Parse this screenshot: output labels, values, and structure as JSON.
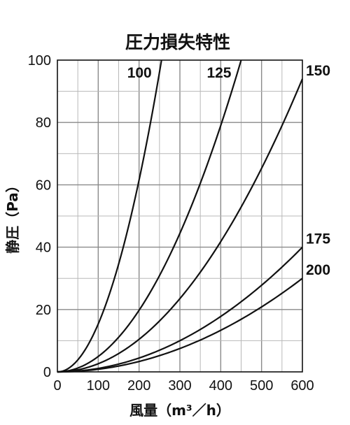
{
  "chart_data": {
    "type": "line",
    "title": "圧力損失特性",
    "xlabel": "風量（m³／h）",
    "ylabel": "静圧（Pa）",
    "xlim": [
      0,
      600
    ],
    "ylim": [
      0,
      100
    ],
    "x_ticks": [
      "0",
      "100",
      "200",
      "300",
      "400",
      "500",
      "600"
    ],
    "y_ticks": [
      "0",
      "20",
      "40",
      "60",
      "80",
      "100"
    ],
    "grid": true,
    "legend": "inline-labels",
    "series": [
      {
        "name": "100",
        "x": [
          0,
          50,
          100,
          150,
          200,
          250,
          255
        ],
        "y": [
          0,
          3.5,
          14.2,
          31.9,
          56.7,
          88.6,
          100
        ]
      },
      {
        "name": "125",
        "x": [
          0,
          100,
          200,
          300,
          400,
          450
        ],
        "y": [
          0,
          4.9,
          19.8,
          44.4,
          79.0,
          100
        ]
      },
      {
        "name": "150",
        "x": [
          0,
          100,
          200,
          300,
          400,
          500,
          600
        ],
        "y": [
          0,
          2.6,
          10.4,
          23.5,
          41.8,
          65.3,
          94
        ]
      },
      {
        "name": "175",
        "x": [
          0,
          100,
          200,
          300,
          400,
          500,
          600
        ],
        "y": [
          0,
          1.1,
          4.4,
          10.0,
          17.8,
          27.8,
          40
        ]
      },
      {
        "name": "200",
        "x": [
          0,
          100,
          200,
          300,
          400,
          500,
          600
        ],
        "y": [
          0,
          0.8,
          3.3,
          7.5,
          13.3,
          20.8,
          30
        ]
      }
    ]
  }
}
